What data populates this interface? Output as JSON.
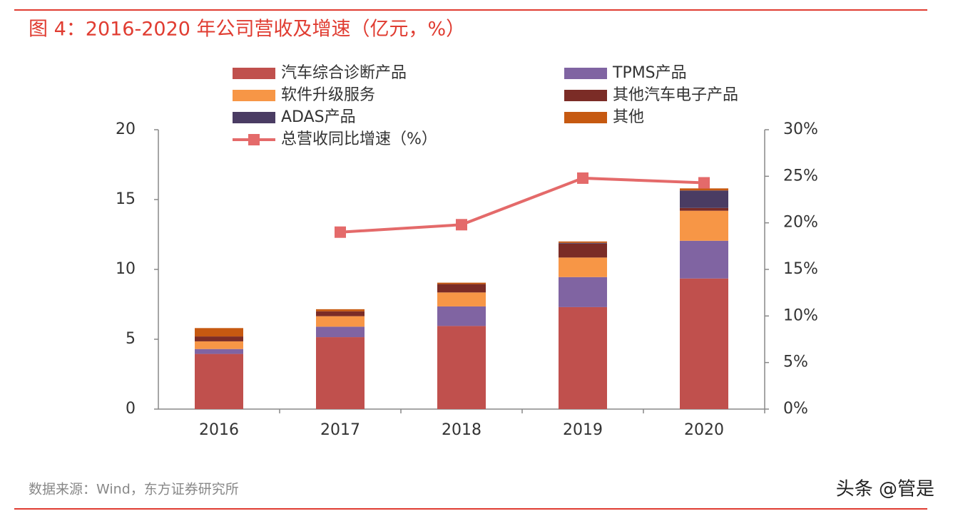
{
  "chart_data": {
    "type": "bar",
    "stacked": true,
    "title": "图 4：2016-2020 年公司营收及增速（亿元，%）",
    "source": "数据来源：Wind，东方证券研究所",
    "watermark": "头条 @管是",
    "categories": [
      "2016",
      "2017",
      "2018",
      "2019",
      "2020"
    ],
    "series": [
      {
        "name": "汽车综合诊断产品",
        "color": "#c0504d",
        "values": [
          3.95,
          5.15,
          5.95,
          7.3,
          9.35
        ]
      },
      {
        "name": "TPMS产品",
        "color": "#8064a2",
        "values": [
          0.35,
          0.75,
          1.4,
          2.15,
          2.7
        ]
      },
      {
        "name": "软件升级服务",
        "color": "#f79646",
        "values": [
          0.55,
          0.75,
          1.0,
          1.4,
          2.15
        ]
      },
      {
        "name": "其他汽车电子产品",
        "color": "#7b2c26",
        "values": [
          0.35,
          0.35,
          0.6,
          1.0,
          0.2
        ]
      },
      {
        "name": "ADAS产品",
        "color": "#4a3c63",
        "values": [
          0,
          0,
          0,
          0.05,
          1.25
        ]
      },
      {
        "name": "其他",
        "color": "#c65911",
        "values": [
          0.6,
          0.15,
          0.1,
          0.1,
          0.15
        ]
      },
      {
        "name": "总营收同比增速（%）",
        "color": "#e46a6a",
        "type": "line",
        "axis": "y2",
        "values": [
          null,
          19.0,
          19.8,
          24.8,
          24.3
        ]
      }
    ],
    "ylim": [
      0,
      20
    ],
    "yticks": [
      0,
      5,
      10,
      15,
      20
    ],
    "y2lim": [
      0,
      30
    ],
    "y2ticks": [
      {
        "value": 0,
        "label": "0%"
      },
      {
        "value": 5,
        "label": "5%"
      },
      {
        "value": 10,
        "label": "10%"
      },
      {
        "value": 15,
        "label": "15%"
      },
      {
        "value": 20,
        "label": "20%"
      },
      {
        "value": 25,
        "label": "25%"
      },
      {
        "value": 30,
        "label": "30%"
      }
    ],
    "grid": false
  }
}
